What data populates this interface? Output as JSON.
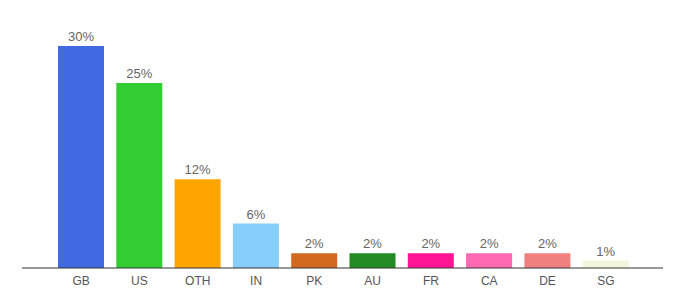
{
  "chart_data": {
    "type": "bar",
    "categories": [
      "GB",
      "US",
      "OTH",
      "IN",
      "PK",
      "AU",
      "FR",
      "CA",
      "DE",
      "SG"
    ],
    "values": [
      30,
      25,
      12,
      6,
      2,
      2,
      2,
      2,
      2,
      1
    ],
    "value_labels": [
      "30%",
      "25%",
      "12%",
      "6%",
      "2%",
      "2%",
      "2%",
      "2%",
      "2%",
      "1%"
    ],
    "colors": [
      "#4169e1",
      "#32cd32",
      "#ffa500",
      "#87cefa",
      "#d2691e",
      "#228b22",
      "#ff1493",
      "#ff69b4",
      "#f08080",
      "#f5f5dc"
    ],
    "data_labels": true,
    "tick_labels": "x"
  }
}
